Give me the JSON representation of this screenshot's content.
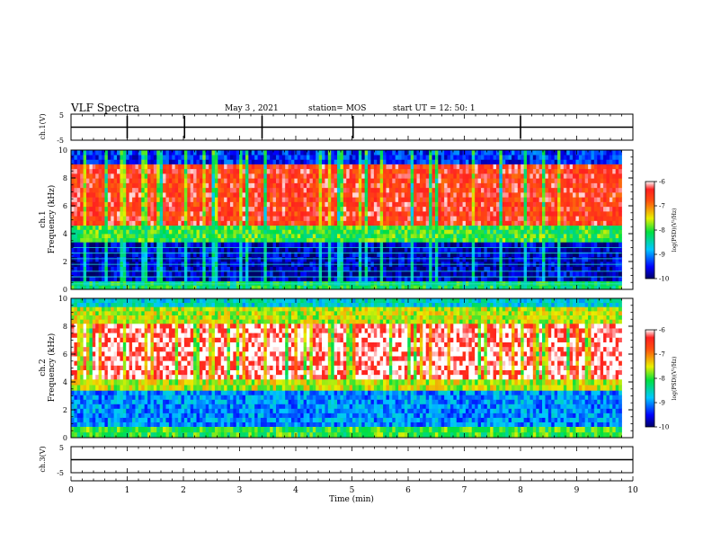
{
  "header": {
    "title": "VLF Spectra",
    "date": "May 3 , 2021",
    "station": "station= MOS",
    "start": "start UT = 12: 50: 1"
  },
  "chart_data": [
    {
      "type": "line",
      "name": "ch1-waveform",
      "ylabel": "ch.1(V)",
      "ylim": [
        -5,
        5
      ],
      "y_ticks": [
        "5",
        "-5"
      ],
      "x_range_min": [
        0,
        10
      ],
      "trace_level": 0,
      "spike_times_min": [
        1.0,
        2.02,
        3.4,
        5.02,
        8.0
      ]
    },
    {
      "type": "heatmap",
      "name": "ch1-spectrogram",
      "ylabel": "ch.1\nFrequency (kHz)",
      "ylim": [
        0,
        10
      ],
      "y_ticks": [
        "0",
        "2",
        "4",
        "6",
        "8",
        "10"
      ],
      "data_end_min": 9.8,
      "colorbar": {
        "label": "log(PSD)(V²/Hz)",
        "min": -10,
        "max": -6,
        "ticks": [
          "-6",
          "-7",
          "-8",
          "-9",
          "-10"
        ]
      },
      "bands": [
        {
          "f_lo": 0.0,
          "f_hi": 0.6,
          "level": -8.2
        },
        {
          "f_lo": 0.6,
          "f_hi": 3.4,
          "level": -9.7
        },
        {
          "f_lo": 3.4,
          "f_hi": 4.6,
          "level": -8.0
        },
        {
          "f_lo": 4.6,
          "f_hi": 9.0,
          "level": -6.5
        },
        {
          "f_lo": 9.0,
          "f_hi": 10.0,
          "level": -9.4
        }
      ],
      "tone_lines_khz": [
        0.4,
        0.9,
        1.3,
        1.8,
        2.2,
        2.6,
        3.0
      ]
    },
    {
      "type": "heatmap",
      "name": "ch2-spectrogram",
      "ylabel": "ch.2\nFrequency (kHz)",
      "ylim": [
        0,
        10
      ],
      "y_ticks": [
        "0",
        "2",
        "4",
        "6",
        "8",
        "10"
      ],
      "data_end_min": 9.8,
      "colorbar": {
        "label": "log(PSD)(V²/Hz)",
        "min": -10,
        "max": -6,
        "ticks": [
          "-6",
          "-7",
          "-8",
          "-9",
          "-10"
        ]
      },
      "bands": [
        {
          "f_lo": 0.0,
          "f_hi": 0.8,
          "level": -8.0
        },
        {
          "f_lo": 0.8,
          "f_hi": 3.4,
          "level": -9.0
        },
        {
          "f_lo": 3.4,
          "f_hi": 4.2,
          "level": -7.6
        },
        {
          "f_lo": 4.2,
          "f_hi": 8.2,
          "level": -6.1
        },
        {
          "f_lo": 8.2,
          "f_hi": 9.4,
          "level": -7.6
        },
        {
          "f_lo": 9.4,
          "f_hi": 10.0,
          "level": -8.6
        }
      ]
    },
    {
      "type": "line",
      "name": "ch3-waveform",
      "ylabel": "ch.3(V)",
      "ylim": [
        -5,
        5
      ],
      "y_ticks": [
        "5",
        "-5"
      ],
      "x_range_min": [
        0,
        10
      ],
      "trace_level": 0
    }
  ],
  "xaxis": {
    "label": "Time (min)",
    "ticks": [
      "0",
      "1",
      "2",
      "3",
      "4",
      "5",
      "6",
      "7",
      "8",
      "9",
      "10"
    ],
    "range": [
      0,
      10
    ]
  }
}
